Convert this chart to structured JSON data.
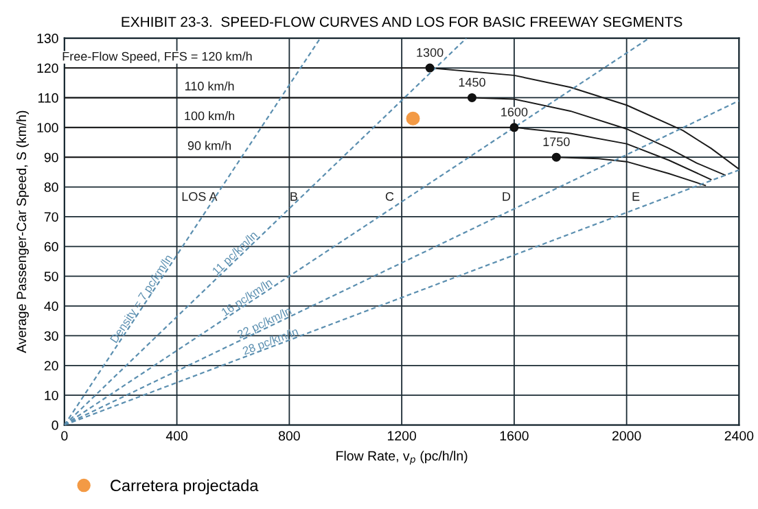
{
  "chart_data": {
    "type": "line",
    "title": "EXHIBIT 23-3.  SPEED-FLOW CURVES AND LOS FOR BASIC FREEWAY SEGMENTS",
    "xlabel": "Flow Rate, v$_{p}$ (pc/h/ln)",
    "ylabel": "Average Passenger-Car Speed, S (km/h)",
    "xlim": [
      0,
      2400
    ],
    "ylim": [
      0,
      130
    ],
    "xticks": [
      0,
      400,
      800,
      1200,
      1600,
      2000,
      2400
    ],
    "yticks": [
      0,
      10,
      20,
      30,
      40,
      50,
      60,
      70,
      80,
      90,
      100,
      110,
      120,
      130
    ],
    "grid": true,
    "legend": "bottom left",
    "series": [
      {
        "name": "Free-Flow Speed, FFS = 120 km/h",
        "color": "#1a1a1a",
        "line_style": "solid",
        "x": [
          0,
          1300,
          1600,
          1800,
          2000,
          2200,
          2300,
          2400
        ],
        "values": [
          120,
          120,
          117.5,
          113.5,
          107.5,
          99,
          93,
          86
        ]
      },
      {
        "name": "110 km/h",
        "color": "#1a1a1a",
        "line_style": "solid",
        "x": [
          0,
          1450,
          1600,
          1800,
          2000,
          2150,
          2250,
          2350
        ],
        "values": [
          110,
          110,
          109.5,
          105.5,
          99.5,
          93,
          88,
          84
        ]
      },
      {
        "name": "100 km/h",
        "color": "#1a1a1a",
        "line_style": "solid",
        "x": [
          0,
          1600,
          1800,
          2000,
          2150,
          2300
        ],
        "values": [
          100,
          100,
          98,
          94.5,
          89,
          82.5
        ]
      },
      {
        "name": "90 km/h",
        "color": "#1a1a1a",
        "line_style": "solid",
        "x": [
          0,
          1750,
          1900,
          2000,
          2150,
          2280
        ],
        "values": [
          90,
          90,
          89.5,
          88.5,
          84.5,
          80.5
        ]
      },
      {
        "name": "Density = 7 pc/km/ln",
        "color": "#5b8fb0",
        "line_style": "dashed",
        "x": [
          0,
          290,
          910
        ],
        "values": [
          0,
          41.4,
          130
        ]
      },
      {
        "name": "11 pc/km/ln",
        "color": "#5b8fb0",
        "line_style": "dashed",
        "x": [
          0,
          620,
          1430
        ],
        "values": [
          0,
          56.4,
          130
        ]
      },
      {
        "name": "16 pc/km/ln",
        "color": "#5b8fb0",
        "line_style": "dashed",
        "x": [
          0,
          660,
          2080
        ],
        "values": [
          0,
          41.3,
          130
        ]
      },
      {
        "name": "22 pc/km/ln",
        "color": "#5b8fb0",
        "line_style": "dashed",
        "x": [
          0,
          720,
          2400
        ],
        "values": [
          0,
          32.7,
          109
        ]
      },
      {
        "name": "28 pc/km/ln",
        "color": "#5b8fb0",
        "line_style": "dashed",
        "x": [
          0,
          740,
          2400
        ],
        "values": [
          0,
          26.4,
          85.7
        ]
      },
      {
        "type": "scatter",
        "color": "#111111",
        "marker": "circle",
        "x": [
          1300,
          1450,
          1600,
          1750
        ],
        "values": [
          120,
          110,
          100,
          90
        ]
      },
      {
        "type": "scatter",
        "name": "Carretera projectada",
        "color": "#f39a45",
        "marker": "circle",
        "x": [
          1240
        ],
        "values": [
          103
        ]
      }
    ],
    "annotations": [
      {
        "text": "1300",
        "x": 1300,
        "y": 120
      },
      {
        "text": "1450",
        "x": 1450,
        "y": 110
      },
      {
        "text": "1600",
        "x": 1600,
        "y": 100
      },
      {
        "text": "1750",
        "x": 1750,
        "y": 90
      },
      "LOS A",
      "B",
      "C",
      "D",
      "E"
    ]
  }
}
